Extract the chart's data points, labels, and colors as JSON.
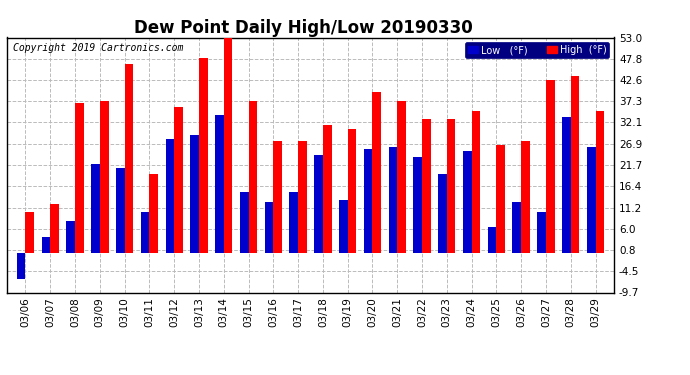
{
  "title": "Dew Point Daily High/Low 20190330",
  "copyright": "Copyright 2019 Cartronics.com",
  "dates": [
    "03/06",
    "03/07",
    "03/08",
    "03/09",
    "03/10",
    "03/11",
    "03/12",
    "03/13",
    "03/14",
    "03/15",
    "03/16",
    "03/17",
    "03/18",
    "03/19",
    "03/20",
    "03/21",
    "03/22",
    "03/23",
    "03/24",
    "03/25",
    "03/26",
    "03/27",
    "03/28",
    "03/29"
  ],
  "high": [
    10.0,
    12.0,
    37.0,
    37.5,
    46.5,
    19.5,
    36.0,
    48.0,
    53.0,
    37.5,
    27.5,
    27.5,
    31.5,
    30.5,
    39.5,
    37.5,
    33.0,
    33.0,
    35.0,
    26.5,
    27.5,
    42.5,
    43.5,
    35.0
  ],
  "low": [
    -6.5,
    4.0,
    8.0,
    22.0,
    21.0,
    10.0,
    28.0,
    29.0,
    34.0,
    15.0,
    12.5,
    15.0,
    24.0,
    13.0,
    25.5,
    26.0,
    23.5,
    19.5,
    25.0,
    6.5,
    12.5,
    10.0,
    33.5,
    26.0
  ],
  "yticks": [
    -9.7,
    -4.5,
    0.8,
    6.0,
    11.2,
    16.4,
    21.7,
    26.9,
    32.1,
    37.3,
    42.6,
    47.8,
    53.0
  ],
  "ylim": [
    -9.7,
    53.0
  ],
  "high_color": "#ff0000",
  "low_color": "#0000cc",
  "bg_color": "#ffffff",
  "grid_color": "#bbbbbb",
  "title_fontsize": 12,
  "legend_high_label": "High  (°F)",
  "legend_low_label": "Low   (°F)",
  "bar_width": 0.35,
  "figwidth": 6.9,
  "figheight": 3.75,
  "dpi": 100
}
